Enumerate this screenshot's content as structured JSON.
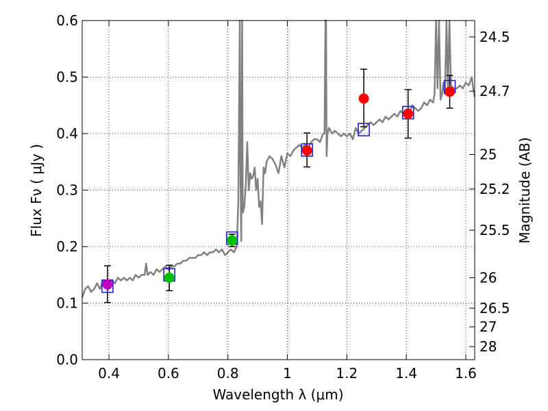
{
  "chart_data": {
    "type": "scatter",
    "xlabel": "Wavelength  λ (μm)",
    "ylabel": "Flux  Fν  ( μJy )",
    "ylabel_right": "Magnitude (AB)",
    "xlim": [
      0.31,
      1.63
    ],
    "ylim": [
      0.0,
      0.6
    ],
    "grid": true,
    "x_ticks": [
      {
        "value": 0.4,
        "label": "0.4"
      },
      {
        "value": 0.6,
        "label": "0.6"
      },
      {
        "value": 0.8,
        "label": "0.8"
      },
      {
        "value": 1.0,
        "label": "1"
      },
      {
        "value": 1.2,
        "label": "1.2"
      },
      {
        "value": 1.4,
        "label": "1.4"
      },
      {
        "value": 1.6,
        "label": "1.6"
      }
    ],
    "y_ticks": [
      {
        "value": 0.0,
        "label": "0.0"
      },
      {
        "value": 0.1,
        "label": "0.1"
      },
      {
        "value": 0.2,
        "label": "0.2"
      },
      {
        "value": 0.3,
        "label": "0.3"
      },
      {
        "value": 0.4,
        "label": "0.4"
      },
      {
        "value": 0.5,
        "label": "0.5"
      },
      {
        "value": 0.6,
        "label": "0.6"
      }
    ],
    "right_ticks": [
      {
        "flux": 0.571,
        "label": "24.5"
      },
      {
        "flux": 0.475,
        "label": "24.7"
      },
      {
        "flux": 0.363,
        "label": "25"
      },
      {
        "flux": 0.302,
        "label": "25.2"
      },
      {
        "flux": 0.229,
        "label": "25.5"
      },
      {
        "flux": 0.145,
        "label": "26"
      },
      {
        "flux": 0.091,
        "label": "26.5"
      },
      {
        "flux": 0.058,
        "label": "27"
      },
      {
        "flux": 0.023,
        "label": "28"
      }
    ],
    "model_spectrum": {
      "name": "SED model",
      "color": "#808080",
      "x": [
        0.31,
        0.32,
        0.33,
        0.34,
        0.35,
        0.36,
        0.37,
        0.38,
        0.39,
        0.4,
        0.41,
        0.42,
        0.43,
        0.44,
        0.45,
        0.46,
        0.47,
        0.48,
        0.49,
        0.5,
        0.51,
        0.52,
        0.525,
        0.53,
        0.54,
        0.55,
        0.56,
        0.57,
        0.58,
        0.59,
        0.6,
        0.61,
        0.62,
        0.63,
        0.64,
        0.65,
        0.66,
        0.67,
        0.68,
        0.69,
        0.7,
        0.71,
        0.72,
        0.73,
        0.74,
        0.75,
        0.76,
        0.77,
        0.78,
        0.79,
        0.8,
        0.81,
        0.82,
        0.83,
        0.835,
        0.84,
        0.842,
        0.845,
        0.848,
        0.85,
        0.855,
        0.86,
        0.865,
        0.87,
        0.875,
        0.88,
        0.885,
        0.89,
        0.895,
        0.9,
        0.905,
        0.91,
        0.915,
        0.92,
        0.925,
        0.93,
        0.94,
        0.95,
        0.96,
        0.97,
        0.98,
        0.99,
        1.0,
        1.01,
        1.02,
        1.03,
        1.04,
        1.05,
        1.06,
        1.07,
        1.08,
        1.09,
        1.1,
        1.11,
        1.12,
        1.125,
        1.128,
        1.13,
        1.132,
        1.135,
        1.14,
        1.15,
        1.16,
        1.17,
        1.18,
        1.19,
        1.2,
        1.21,
        1.22,
        1.23,
        1.24,
        1.25,
        1.26,
        1.27,
        1.28,
        1.29,
        1.3,
        1.31,
        1.32,
        1.33,
        1.34,
        1.35,
        1.36,
        1.37,
        1.38,
        1.39,
        1.4,
        1.41,
        1.42,
        1.43,
        1.44,
        1.45,
        1.46,
        1.47,
        1.48,
        1.49,
        1.495,
        1.5,
        1.505,
        1.51,
        1.515,
        1.52,
        1.525,
        1.53,
        1.535,
        1.54,
        1.545,
        1.55,
        1.56,
        1.57,
        1.58,
        1.59,
        1.6,
        1.61,
        1.62,
        1.625,
        1.63
      ],
      "y": [
        0.11,
        0.125,
        0.13,
        0.12,
        0.125,
        0.135,
        0.125,
        0.14,
        0.13,
        0.135,
        0.14,
        0.135,
        0.145,
        0.14,
        0.145,
        0.14,
        0.145,
        0.14,
        0.15,
        0.145,
        0.15,
        0.15,
        0.17,
        0.15,
        0.155,
        0.15,
        0.16,
        0.155,
        0.16,
        0.165,
        0.16,
        0.165,
        0.165,
        0.17,
        0.17,
        0.175,
        0.175,
        0.18,
        0.18,
        0.18,
        0.185,
        0.185,
        0.19,
        0.185,
        0.19,
        0.19,
        0.195,
        0.19,
        0.195,
        0.185,
        0.19,
        0.195,
        0.19,
        0.2,
        0.28,
        0.6,
        0.35,
        0.21,
        0.6,
        0.26,
        0.27,
        0.31,
        0.385,
        0.3,
        0.33,
        0.32,
        0.325,
        0.34,
        0.3,
        0.32,
        0.27,
        0.28,
        0.24,
        0.34,
        0.33,
        0.35,
        0.36,
        0.355,
        0.345,
        0.33,
        0.36,
        0.34,
        0.365,
        0.36,
        0.37,
        0.375,
        0.38,
        0.375,
        0.38,
        0.375,
        0.385,
        0.39,
        0.39,
        0.385,
        0.4,
        0.4,
        0.6,
        0.6,
        0.36,
        0.4,
        0.41,
        0.4,
        0.405,
        0.4,
        0.395,
        0.4,
        0.395,
        0.4,
        0.39,
        0.41,
        0.4,
        0.405,
        0.41,
        0.415,
        0.42,
        0.415,
        0.42,
        0.425,
        0.42,
        0.43,
        0.425,
        0.43,
        0.435,
        0.43,
        0.44,
        0.435,
        0.44,
        0.435,
        0.45,
        0.445,
        0.44,
        0.445,
        0.455,
        0.45,
        0.46,
        0.455,
        0.47,
        0.6,
        0.48,
        0.6,
        0.46,
        0.47,
        0.49,
        0.47,
        0.6,
        0.48,
        0.6,
        0.485,
        0.48,
        0.48,
        0.485,
        0.48,
        0.49,
        0.485,
        0.5,
        0.48,
        0.465
      ]
    },
    "series": [
      {
        "name": "model band fluxes",
        "marker": "open-square",
        "color": "#1f1fd0",
        "points": [
          {
            "x": 0.395,
            "y": 0.13
          },
          {
            "x": 0.603,
            "y": 0.15
          },
          {
            "x": 0.814,
            "y": 0.215
          },
          {
            "x": 1.066,
            "y": 0.371
          },
          {
            "x": 1.257,
            "y": 0.407
          },
          {
            "x": 1.406,
            "y": 0.437
          },
          {
            "x": 1.546,
            "y": 0.483
          }
        ]
      },
      {
        "name": "observed fluxes",
        "marker": "filled-circle",
        "points": [
          {
            "x": 0.395,
            "y": 0.133,
            "err_low": 0.101,
            "err_high": 0.166,
            "color": "#bf00bf"
          },
          {
            "x": 0.603,
            "y": 0.145,
            "err_low": 0.122,
            "err_high": 0.167,
            "color": "#00c000"
          },
          {
            "x": 0.814,
            "y": 0.211,
            "err_low": 0.2,
            "err_high": 0.222,
            "color": "#00c000"
          },
          {
            "x": 1.066,
            "y": 0.37,
            "err_low": 0.341,
            "err_high": 0.401,
            "color": "#ff0000"
          },
          {
            "x": 1.257,
            "y": 0.462,
            "err_low": 0.412,
            "err_high": 0.514,
            "color": "#ff0000"
          },
          {
            "x": 1.406,
            "y": 0.435,
            "err_low": 0.392,
            "err_high": 0.478,
            "color": "#ff0000"
          },
          {
            "x": 1.546,
            "y": 0.474,
            "err_low": 0.445,
            "err_high": 0.503,
            "color": "#ff0000"
          }
        ]
      }
    ]
  }
}
